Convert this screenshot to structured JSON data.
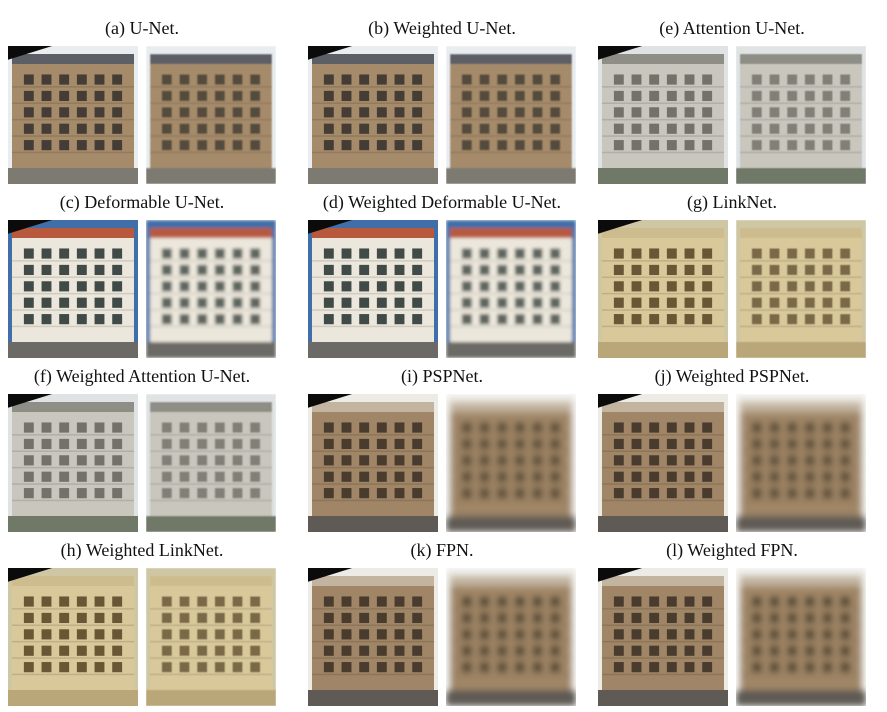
{
  "figure": {
    "panels": [
      {
        "id": "a",
        "caption": "(a) U-Net.",
        "scene": "corner",
        "blur": 0.8
      },
      {
        "id": "b",
        "caption": "(b) Weighted U-Net.",
        "scene": "corner",
        "blur": 0.8
      },
      {
        "id": "e",
        "caption": "(e) Attention U-Net.",
        "scene": "theatre",
        "blur": 0.6
      },
      {
        "id": "c",
        "caption": "(c) Deformable U-Net.",
        "scene": "white",
        "blur": 1.6
      },
      {
        "id": "d",
        "caption": "(d) Weighted Deformable U-Net.",
        "scene": "white",
        "blur": 1.6
      },
      {
        "id": "g",
        "caption": "(g) LinkNet.",
        "scene": "cream",
        "blur": 0.5
      },
      {
        "id": "f",
        "caption": "(f) Weighted Attention U-Net.",
        "scene": "theatre",
        "blur": 0.8
      },
      {
        "id": "i",
        "caption": "(i) PSPNet.",
        "scene": "brown",
        "blur": 3.5
      },
      {
        "id": "j",
        "caption": "(j) Weighted PSPNet.",
        "scene": "brown",
        "blur": 3.5
      },
      {
        "id": "h",
        "caption": "(h) Weighted LinkNet.",
        "scene": "cream",
        "blur": 0.5
      },
      {
        "id": "k",
        "caption": "(k) FPN.",
        "scene": "brown",
        "blur": 3.2
      },
      {
        "id": "l",
        "caption": "(l) Weighted FPN.",
        "scene": "brown",
        "blur": 3.2
      }
    ],
    "scenes": {
      "corner": {
        "facade": "#a68b6a",
        "roof": "#5b5f66",
        "window": "#3a3530",
        "sky": "#e9edf0",
        "ground": "#7d7a72"
      },
      "theatre": {
        "facade": "#c9c6bd",
        "roof": "#8f8e86",
        "window": "#6b6760",
        "sky": "#dfe3e4",
        "ground": "#6f7868"
      },
      "white": {
        "facade": "#ece7dc",
        "roof": "#b8593e",
        "window": "#2f3a36",
        "sky": "#3f6ea8",
        "ground": "#6c6a66"
      },
      "cream": {
        "facade": "#d9c89a",
        "roof": "#cdbd8e",
        "window": "#5a4a2a",
        "sky": "#cfc7a4",
        "ground": "#b9a679"
      },
      "brown": {
        "facade": "#a08666",
        "roof": "#c2b49e",
        "window": "#3e3327",
        "sky": "#ecebe6",
        "ground": "#5e5a54"
      }
    }
  }
}
